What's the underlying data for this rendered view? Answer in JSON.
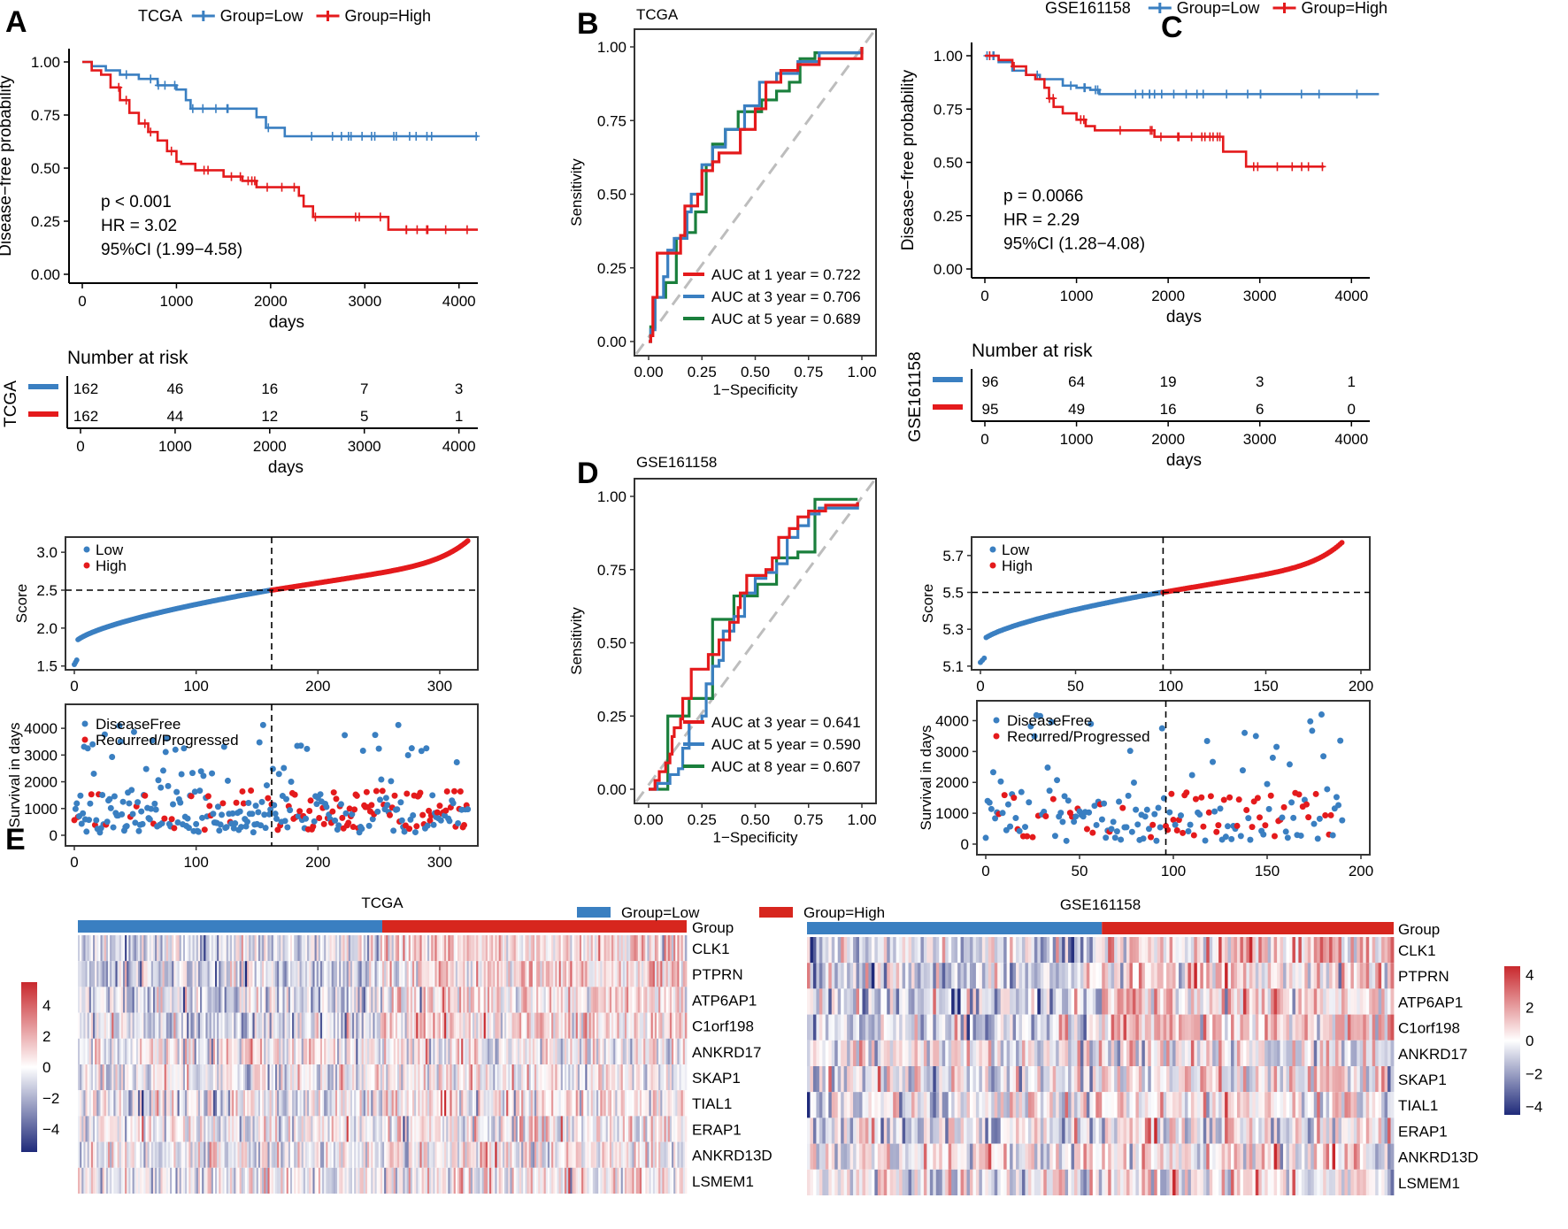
{
  "chart_data": [
    {
      "id": "A_km",
      "panel_label": "A",
      "type": "line",
      "subtype": "kaplan-meier",
      "title": "TCGA",
      "legend": [
        "Group=Low",
        "Group=High"
      ],
      "xlabel": "days",
      "ylabel": "Disease−free probability",
      "xlim": [
        0,
        4200
      ],
      "ylim": [
        0,
        1
      ],
      "xticks": [
        "0",
        "1000",
        "2000",
        "3000",
        "4000"
      ],
      "yticks": [
        "0.00",
        "0.25",
        "0.50",
        "0.75",
        "1.00"
      ],
      "annotations": [
        "p < 0.001",
        "HR = 3.02",
        "95%CI (1.99−4.58)"
      ],
      "series": [
        {
          "name": "Group=Low",
          "color": "#3a7fc1",
          "x": [
            0,
            100,
            250,
            400,
            600,
            800,
            1000,
            1100,
            1150,
            1800,
            1850,
            1950,
            2050,
            2150,
            4200
          ],
          "y": [
            1.0,
            0.98,
            0.96,
            0.94,
            0.92,
            0.89,
            0.87,
            0.82,
            0.78,
            0.78,
            0.74,
            0.69,
            0.69,
            0.65,
            0.65
          ]
        },
        {
          "name": "Group=High",
          "color": "#e41a1c",
          "x": [
            0,
            100,
            200,
            300,
            400,
            500,
            600,
            700,
            800,
            900,
            1000,
            1050,
            1200,
            1300,
            1500,
            1700,
            1850,
            2000,
            2300,
            2350,
            2450,
            2550,
            3200,
            3250,
            4200
          ],
          "y": [
            1.0,
            0.96,
            0.94,
            0.88,
            0.82,
            0.76,
            0.71,
            0.67,
            0.63,
            0.58,
            0.53,
            0.52,
            0.49,
            0.49,
            0.46,
            0.44,
            0.41,
            0.41,
            0.37,
            0.32,
            0.27,
            0.27,
            0.27,
            0.21,
            0.21
          ]
        }
      ]
    },
    {
      "id": "A_risk",
      "type": "table",
      "title": "Number at risk",
      "ylabel": "TCGA",
      "xlabel": "days",
      "xticks": [
        "0",
        "1000",
        "2000",
        "3000",
        "4000"
      ],
      "rows": [
        {
          "name": "Group=Low",
          "color": "#3a7fc1",
          "values": [
            "162",
            "46",
            "16",
            "7",
            "3"
          ]
        },
        {
          "name": "Group=High",
          "color": "#e41a1c",
          "values": [
            "162",
            "44",
            "12",
            "5",
            "1"
          ]
        }
      ]
    },
    {
      "id": "A_score",
      "type": "scatter",
      "ylabel": "Score",
      "legend": [
        "Low",
        "High"
      ],
      "xlim": [
        0,
        324
      ],
      "ylim": [
        1.45,
        3.2
      ],
      "xticks": [
        "0",
        "100",
        "200",
        "300"
      ],
      "yticks": [
        "1.5",
        "2.0",
        "2.5",
        "3.0"
      ],
      "cutoff_x": 162,
      "cutoff_y": 2.5,
      "n_low": 162,
      "n_high": 162,
      "score_range_low": [
        1.52,
        2.5
      ],
      "score_range_high": [
        2.5,
        3.15
      ]
    },
    {
      "id": "A_surv",
      "type": "scatter",
      "ylabel": "Survival in days",
      "legend": [
        "DiseaseFree",
        "Recurred/Progressed"
      ],
      "xlim": [
        0,
        324
      ],
      "ylim": [
        0,
        4500
      ],
      "xticks": [
        "0",
        "100",
        "200",
        "300"
      ],
      "yticks": [
        "0",
        "1000",
        "2000",
        "3000",
        "4000"
      ],
      "cutoff_x": 162
    },
    {
      "id": "B_roc",
      "panel_label": "B",
      "type": "line",
      "subtype": "roc",
      "title": "TCGA",
      "xlabel": "1−Specificity",
      "ylabel": "Sensitivity",
      "xlim": [
        0,
        1
      ],
      "ylim": [
        0,
        1
      ],
      "xticks": [
        "0.00",
        "0.25",
        "0.50",
        "0.75",
        "1.00"
      ],
      "yticks": [
        "0.00",
        "0.25",
        "0.50",
        "0.75",
        "1.00"
      ],
      "series": [
        {
          "name": "AUC at 1 year = 0.722",
          "color": "#e41a1c",
          "x": [
            0,
            0.01,
            0.02,
            0.02,
            0.04,
            0.04,
            0.05,
            0.05,
            0.15,
            0.15,
            0.17,
            0.17,
            0.23,
            0.23,
            0.25,
            0.25,
            0.3,
            0.3,
            0.33,
            0.33,
            0.43,
            0.43,
            0.5,
            0.5,
            0.55,
            0.55,
            0.62,
            0.62,
            0.7,
            0.7,
            0.8,
            0.8,
            1.0
          ],
          "y": [
            0,
            0.02,
            0.05,
            0.15,
            0.22,
            0.3,
            0.3,
            0.3,
            0.3,
            0.36,
            0.42,
            0.46,
            0.46,
            0.5,
            0.55,
            0.58,
            0.58,
            0.61,
            0.64,
            0.64,
            0.67,
            0.72,
            0.79,
            0.79,
            0.85,
            0.88,
            0.88,
            0.92,
            0.92,
            0.94,
            0.94,
            0.96,
            1.0
          ]
        },
        {
          "name": "AUC at 3 year = 0.706",
          "color": "#3a7fc1",
          "x": [
            0,
            0.01,
            0.03,
            0.03,
            0.07,
            0.07,
            0.09,
            0.09,
            0.12,
            0.12,
            0.18,
            0.18,
            0.2,
            0.2,
            0.25,
            0.25,
            0.3,
            0.3,
            0.36,
            0.36,
            0.45,
            0.45,
            0.52,
            0.52,
            0.6,
            0.6,
            0.7,
            0.7,
            0.8,
            0.8,
            1.0
          ],
          "y": [
            0,
            0.04,
            0.04,
            0.15,
            0.22,
            0.22,
            0.27,
            0.31,
            0.34,
            0.35,
            0.38,
            0.44,
            0.5,
            0.5,
            0.6,
            0.6,
            0.63,
            0.66,
            0.69,
            0.72,
            0.78,
            0.8,
            0.84,
            0.88,
            0.88,
            0.91,
            0.93,
            0.95,
            0.96,
            0.98,
            1.0
          ]
        },
        {
          "name": "AUC at 5 year = 0.689",
          "color": "#1a7f3c",
          "x": [
            0,
            0.01,
            0.03,
            0.03,
            0.08,
            0.08,
            0.13,
            0.13,
            0.17,
            0.17,
            0.22,
            0.22,
            0.27,
            0.27,
            0.3,
            0.3,
            0.36,
            0.36,
            0.42,
            0.42,
            0.53,
            0.53,
            0.6,
            0.6,
            0.66,
            0.66,
            0.71,
            0.71,
            0.78,
            0.78,
            1.0
          ],
          "y": [
            0,
            0.05,
            0.05,
            0.15,
            0.15,
            0.2,
            0.2,
            0.35,
            0.35,
            0.37,
            0.37,
            0.44,
            0.49,
            0.6,
            0.62,
            0.67,
            0.67,
            0.72,
            0.72,
            0.78,
            0.78,
            0.82,
            0.82,
            0.85,
            0.85,
            0.88,
            0.88,
            0.96,
            0.96,
            0.98,
            1.0
          ]
        }
      ]
    },
    {
      "id": "D_roc",
      "panel_label": "D",
      "type": "line",
      "subtype": "roc",
      "title": "GSE161158",
      "xlabel": "1−Specificity",
      "ylabel": "Sensitivity",
      "xlim": [
        0,
        1
      ],
      "ylim": [
        0,
        1
      ],
      "xticks": [
        "0.00",
        "0.25",
        "0.50",
        "0.75",
        "1.00"
      ],
      "yticks": [
        "0.00",
        "0.25",
        "0.50",
        "0.75",
        "1.00"
      ],
      "series": [
        {
          "name": "AUC at 3 year = 0.641",
          "color": "#e41a1c",
          "x": [
            0,
            0.03,
            0.05,
            0.08,
            0.1,
            0.11,
            0.12,
            0.15,
            0.16,
            0.2,
            0.27,
            0.28,
            0.33,
            0.38,
            0.42,
            0.43,
            0.46,
            0.55,
            0.58,
            0.61,
            0.66,
            0.7,
            0.74,
            0.75,
            0.83,
            0.98
          ],
          "y": [
            0,
            0.03,
            0.06,
            0.09,
            0.12,
            0.18,
            0.21,
            0.24,
            0.31,
            0.41,
            0.41,
            0.46,
            0.51,
            0.57,
            0.62,
            0.67,
            0.73,
            0.75,
            0.79,
            0.86,
            0.89,
            0.93,
            0.93,
            0.95,
            0.97,
            0.98
          ]
        },
        {
          "name": "AUC at 5 year = 0.590",
          "color": "#3a7fc1",
          "x": [
            0,
            0.04,
            0.1,
            0.14,
            0.16,
            0.19,
            0.25,
            0.27,
            0.3,
            0.33,
            0.35,
            0.4,
            0.45,
            0.5,
            0.55,
            0.6,
            0.65,
            0.7,
            0.75,
            0.8,
            0.98
          ],
          "y": [
            0,
            0.02,
            0.05,
            0.07,
            0.14,
            0.23,
            0.25,
            0.36,
            0.42,
            0.44,
            0.54,
            0.59,
            0.67,
            0.72,
            0.74,
            0.77,
            0.86,
            0.9,
            0.94,
            0.96,
            0.98
          ]
        },
        {
          "name": "AUC at 8 year = 0.607",
          "color": "#1a7f3c",
          "x": [
            0,
            0.09,
            0.09,
            0.19,
            0.19,
            0.3,
            0.3,
            0.4,
            0.4,
            0.51,
            0.51,
            0.6,
            0.6,
            0.7,
            0.7,
            0.78,
            0.78,
            0.98
          ],
          "y": [
            0,
            0.0,
            0.25,
            0.25,
            0.31,
            0.31,
            0.58,
            0.58,
            0.66,
            0.66,
            0.7,
            0.7,
            0.79,
            0.79,
            0.81,
            0.81,
            0.99,
            0.99
          ]
        }
      ]
    },
    {
      "id": "C_km",
      "panel_label": "C",
      "type": "line",
      "subtype": "kaplan-meier",
      "title": "GSE161158",
      "legend": [
        "Group=Low",
        "Group=High"
      ],
      "xlabel": "days",
      "ylabel": "Disease−free probability",
      "xlim": [
        0,
        4200
      ],
      "ylim": [
        0,
        1
      ],
      "xticks": [
        "0",
        "1000",
        "2000",
        "3000",
        "4000"
      ],
      "yticks": [
        "0.00",
        "0.25",
        "0.50",
        "0.75",
        "1.00"
      ],
      "annotations": [
        "p = 0.0066",
        "HR = 2.29",
        "95%CI (1.28−4.08)"
      ],
      "series": [
        {
          "name": "Group=Low",
          "color": "#3a7fc1",
          "x": [
            0,
            150,
            300,
            450,
            600,
            850,
            1000,
            1150,
            1250,
            4300
          ],
          "y": [
            1.0,
            0.97,
            0.93,
            0.91,
            0.89,
            0.86,
            0.85,
            0.84,
            0.82,
            0.82
          ]
        },
        {
          "name": "Group=High",
          "color": "#e41a1c",
          "x": [
            0,
            150,
            300,
            450,
            550,
            650,
            700,
            750,
            850,
            1000,
            1100,
            1200,
            1800,
            1850,
            2550,
            2600,
            2800,
            2850,
            3700
          ],
          "y": [
            1.0,
            0.98,
            0.95,
            0.91,
            0.89,
            0.85,
            0.8,
            0.76,
            0.73,
            0.7,
            0.67,
            0.65,
            0.65,
            0.62,
            0.62,
            0.55,
            0.55,
            0.48,
            0.48
          ]
        }
      ]
    },
    {
      "id": "C_risk",
      "type": "table",
      "title": "Number at risk",
      "ylabel": "GSE161158",
      "xlabel": "days",
      "xticks": [
        "0",
        "1000",
        "2000",
        "3000",
        "4000"
      ],
      "rows": [
        {
          "name": "Group=Low",
          "color": "#3a7fc1",
          "values": [
            "96",
            "64",
            "19",
            "3",
            "1"
          ]
        },
        {
          "name": "Group=High",
          "color": "#e41a1c",
          "values": [
            "95",
            "49",
            "16",
            "6",
            "0"
          ]
        }
      ]
    },
    {
      "id": "C_score",
      "type": "scatter",
      "ylabel": "Score",
      "legend": [
        "Low",
        "High"
      ],
      "xlim": [
        0,
        200
      ],
      "ylim": [
        5.08,
        5.8
      ],
      "xticks": [
        "0",
        "50",
        "100",
        "150",
        "200"
      ],
      "yticks": [
        "5.1",
        "5.3",
        "5.5",
        "5.7"
      ],
      "cutoff_x": 96,
      "cutoff_y": 5.5,
      "n_low": 96,
      "n_high": 95,
      "score_range_low": [
        5.12,
        5.5
      ],
      "score_range_high": [
        5.5,
        5.77
      ]
    },
    {
      "id": "C_surv",
      "type": "scatter",
      "ylabel": "Survival in days",
      "legend": [
        "DiseaseFree",
        "Recurred/Progressed"
      ],
      "xlim": [
        0,
        200
      ],
      "ylim": [
        0,
        4300
      ],
      "xticks": [
        "0",
        "50",
        "100",
        "150",
        "200"
      ],
      "yticks": [
        "0",
        "1000",
        "2000",
        "3000",
        "4000"
      ],
      "cutoff_x": 96
    },
    {
      "id": "E_heatmap",
      "panel_label": "E",
      "type": "heatmap",
      "legend": [
        "Group=Low",
        "Group=High"
      ],
      "legend_colors": [
        "#3a7fc1",
        "#d7261e"
      ],
      "annotation_row": "Group",
      "genes": [
        "CLK1",
        "PTPRN",
        "ATP6AP1",
        "C1orf198",
        "ANKRD17",
        "SKAP1",
        "TIAL1",
        "ERAP1",
        "ANKRD13D",
        "LSMEM1"
      ],
      "panels": [
        {
          "title": "TCGA",
          "n_low": 162,
          "n_high": 162,
          "colorbar_ticks": [
            "4",
            "2",
            "0",
            "−2",
            "−4"
          ],
          "range": [
            -5.5,
            5.5
          ]
        },
        {
          "title": "GSE161158",
          "n_low": 96,
          "n_high": 95,
          "colorbar_ticks": [
            "4",
            "2",
            "0",
            "−2",
            "−4"
          ],
          "range": [
            -4.5,
            4.5
          ]
        }
      ],
      "color_low": "#1f2a7a",
      "color_mid": "#ffffff",
      "color_high": "#c8282d"
    }
  ]
}
